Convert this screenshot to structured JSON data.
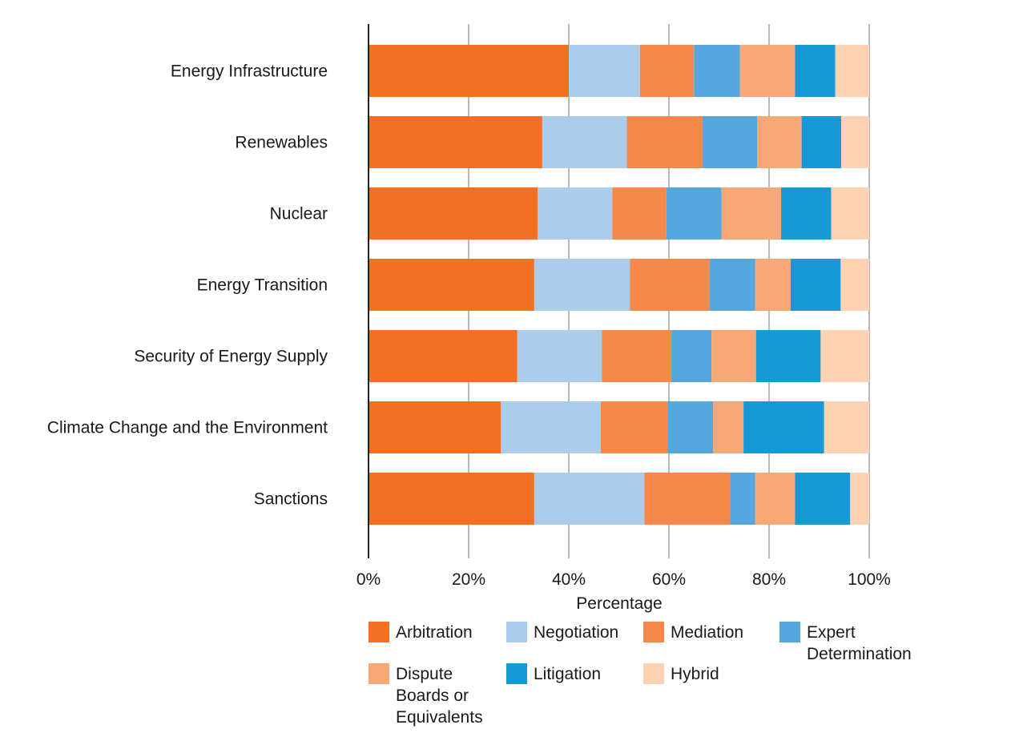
{
  "chart_data": {
    "type": "bar",
    "orientation": "horizontal",
    "stacked": "percent",
    "categories": [
      "Energy Infrastructure",
      "Renewables",
      "Nuclear",
      "Energy Transition",
      "Security of Energy Supply",
      "Climate Change and the Environment",
      "Sanctions"
    ],
    "series": [
      {
        "name": "Arbitration",
        "color": "#f26f23",
        "values": [
          40,
          34.7,
          33.8,
          33.1,
          29.7,
          26.4,
          33.1
        ]
      },
      {
        "name": "Negotiation",
        "color": "#abcdeb",
        "values": [
          14.2,
          16.9,
          14.9,
          19.1,
          16.9,
          20.0,
          22.0
        ]
      },
      {
        "name": "Mediation",
        "color": "#f6894a",
        "values": [
          10.8,
          15.1,
          10.8,
          15.9,
          13.9,
          13.3,
          17.1
        ]
      },
      {
        "name": "Expert Determination",
        "color": "#56a7dd",
        "values": [
          9.2,
          10.9,
          11.0,
          9.1,
          8.0,
          9.1,
          5.0
        ]
      },
      {
        "name": "Dispute Boards or Equivalents",
        "color": "#f7a877",
        "values": [
          11.0,
          8.9,
          11.9,
          7.1,
          8.9,
          6.1,
          8.0
        ]
      },
      {
        "name": "Litigation",
        "color": "#1899d6",
        "values": [
          8.0,
          7.9,
          10.0,
          10.0,
          12.9,
          16.1,
          11.0
        ]
      },
      {
        "name": "Hybrid",
        "color": "#fdd3b4",
        "values": [
          6.8,
          5.6,
          7.6,
          5.7,
          9.7,
          9.0,
          3.8
        ]
      }
    ],
    "xlabel": "Percentage",
    "xlim": [
      0,
      100
    ],
    "xticks": [
      "0%",
      "20%",
      "40%",
      "60%",
      "80%",
      "100%"
    ],
    "xtick_values": [
      0,
      20,
      40,
      60,
      80,
      100
    ],
    "grid": "vertical",
    "legend": "bottom"
  }
}
